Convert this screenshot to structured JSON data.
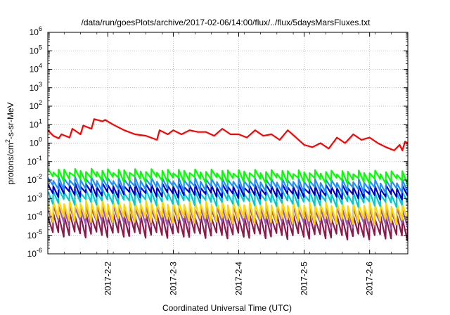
{
  "chart_data": {
    "type": "line",
    "title": "/data/run/goesPlots/archive/2017-02-06/14:00/flux/../flux/5daysMarsFluxes.txt",
    "xlabel": "Coordinated Universal Time (UTC)",
    "ylabel": "protons/cm²-s-sr-MeV",
    "yscale": "log",
    "ylim": [
      1e-06,
      1000000.0
    ],
    "xlim": [
      "2017-02-01T02:00",
      "2017-02-06T14:00"
    ],
    "grid": true,
    "legend": "none",
    "y_ticks": [
      {
        "base": "10",
        "exp": "-6"
      },
      {
        "base": "10",
        "exp": "-5"
      },
      {
        "base": "10",
        "exp": "-4"
      },
      {
        "base": "10",
        "exp": "-3"
      },
      {
        "base": "10",
        "exp": "-2"
      },
      {
        "base": "10",
        "exp": "-1"
      },
      {
        "base": "10",
        "exp": "0"
      },
      {
        "base": "10",
        "exp": "1"
      },
      {
        "base": "10",
        "exp": "2"
      },
      {
        "base": "10",
        "exp": "3"
      },
      {
        "base": "10",
        "exp": "4"
      },
      {
        "base": "10",
        "exp": "5"
      },
      {
        "base": "10",
        "exp": "6"
      }
    ],
    "x_ticks": [
      {
        "label": "2017-2-2",
        "date": "2017-02-02T00:00"
      },
      {
        "label": "2017-2-3",
        "date": "2017-02-03T00:00"
      },
      {
        "label": "2017-2-4",
        "date": "2017-02-04T00:00"
      },
      {
        "label": "2017-2-5",
        "date": "2017-02-05T00:00"
      },
      {
        "label": "2017-2-6",
        "date": "2017-02-06T00:00"
      }
    ],
    "series": [
      {
        "color": "#ff0000",
        "x": [
          "2017-02-01T02:00",
          "2017-02-01T04:00",
          "2017-02-01T06:00",
          "2017-02-01T07:00",
          "2017-02-01T10:00",
          "2017-02-01T11:00",
          "2017-02-01T14:00",
          "2017-02-01T15:00",
          "2017-02-01T18:00",
          "2017-02-01T19:00",
          "2017-02-01T22:00",
          "2017-02-01T23:00",
          "2017-02-02T02:00",
          "2017-02-02T06:00",
          "2017-02-02T10:00",
          "2017-02-02T14:00",
          "2017-02-02T18:00",
          "2017-02-02T19:00",
          "2017-02-02T22:00",
          "2017-02-03T00:00",
          "2017-02-03T03:00",
          "2017-02-03T06:00",
          "2017-02-03T09:00",
          "2017-02-03T12:00",
          "2017-02-03T15:00",
          "2017-02-03T18:00",
          "2017-02-03T21:00",
          "2017-02-04T00:00",
          "2017-02-04T03:00",
          "2017-02-04T06:00",
          "2017-02-04T09:00",
          "2017-02-04T12:00",
          "2017-02-04T15:00",
          "2017-02-04T18:00",
          "2017-02-04T21:00",
          "2017-02-05T00:00",
          "2017-02-05T03:00",
          "2017-02-05T06:00",
          "2017-02-05T09:00",
          "2017-02-05T12:00",
          "2017-02-05T15:00",
          "2017-02-05T18:00",
          "2017-02-05T21:00",
          "2017-02-06T00:00",
          "2017-02-06T03:00",
          "2017-02-06T06:00",
          "2017-02-06T09:00",
          "2017-02-06T11:00",
          "2017-02-06T12:00",
          "2017-02-06T13:00",
          "2017-02-06T14:00"
        ],
        "y": [
          5,
          2.5,
          1.8,
          3,
          2,
          6,
          3,
          9,
          6,
          20,
          15,
          18,
          10,
          5,
          3,
          2.5,
          1.5,
          5,
          3,
          5,
          3,
          5,
          4,
          4,
          2.5,
          6,
          3,
          3,
          2,
          5,
          2.5,
          3,
          1.5,
          5,
          2,
          0.8,
          0.6,
          1,
          0.5,
          2,
          1,
          3,
          1.5,
          2,
          1,
          0.6,
          0.4,
          0.8,
          0.4,
          1.2,
          1
        ]
      },
      {
        "color": "#00ff00",
        "base": 0.012,
        "amp": 0.022,
        "trend": 0.75
      },
      {
        "color": "#1e90ff",
        "base": 0.004,
        "amp": 0.008,
        "trend": 0.7
      },
      {
        "color": "#0000cd",
        "base": 0.0018,
        "amp": 0.004,
        "trend": 0.7
      },
      {
        "color": "#00cccc",
        "base": 0.0007,
        "amp": 0.002,
        "trend": 0.7
      },
      {
        "color": "#ffd700",
        "base": 8e-05,
        "amp": 0.0006,
        "trend": 0.7
      },
      {
        "color": "#9b59b6",
        "base": 5e-05,
        "amp": 0.0003,
        "trend": 0.7
      },
      {
        "color": "#8b1a4a",
        "base": 1.2e-05,
        "amp": 0.00012,
        "trend": 0.7
      }
    ]
  }
}
